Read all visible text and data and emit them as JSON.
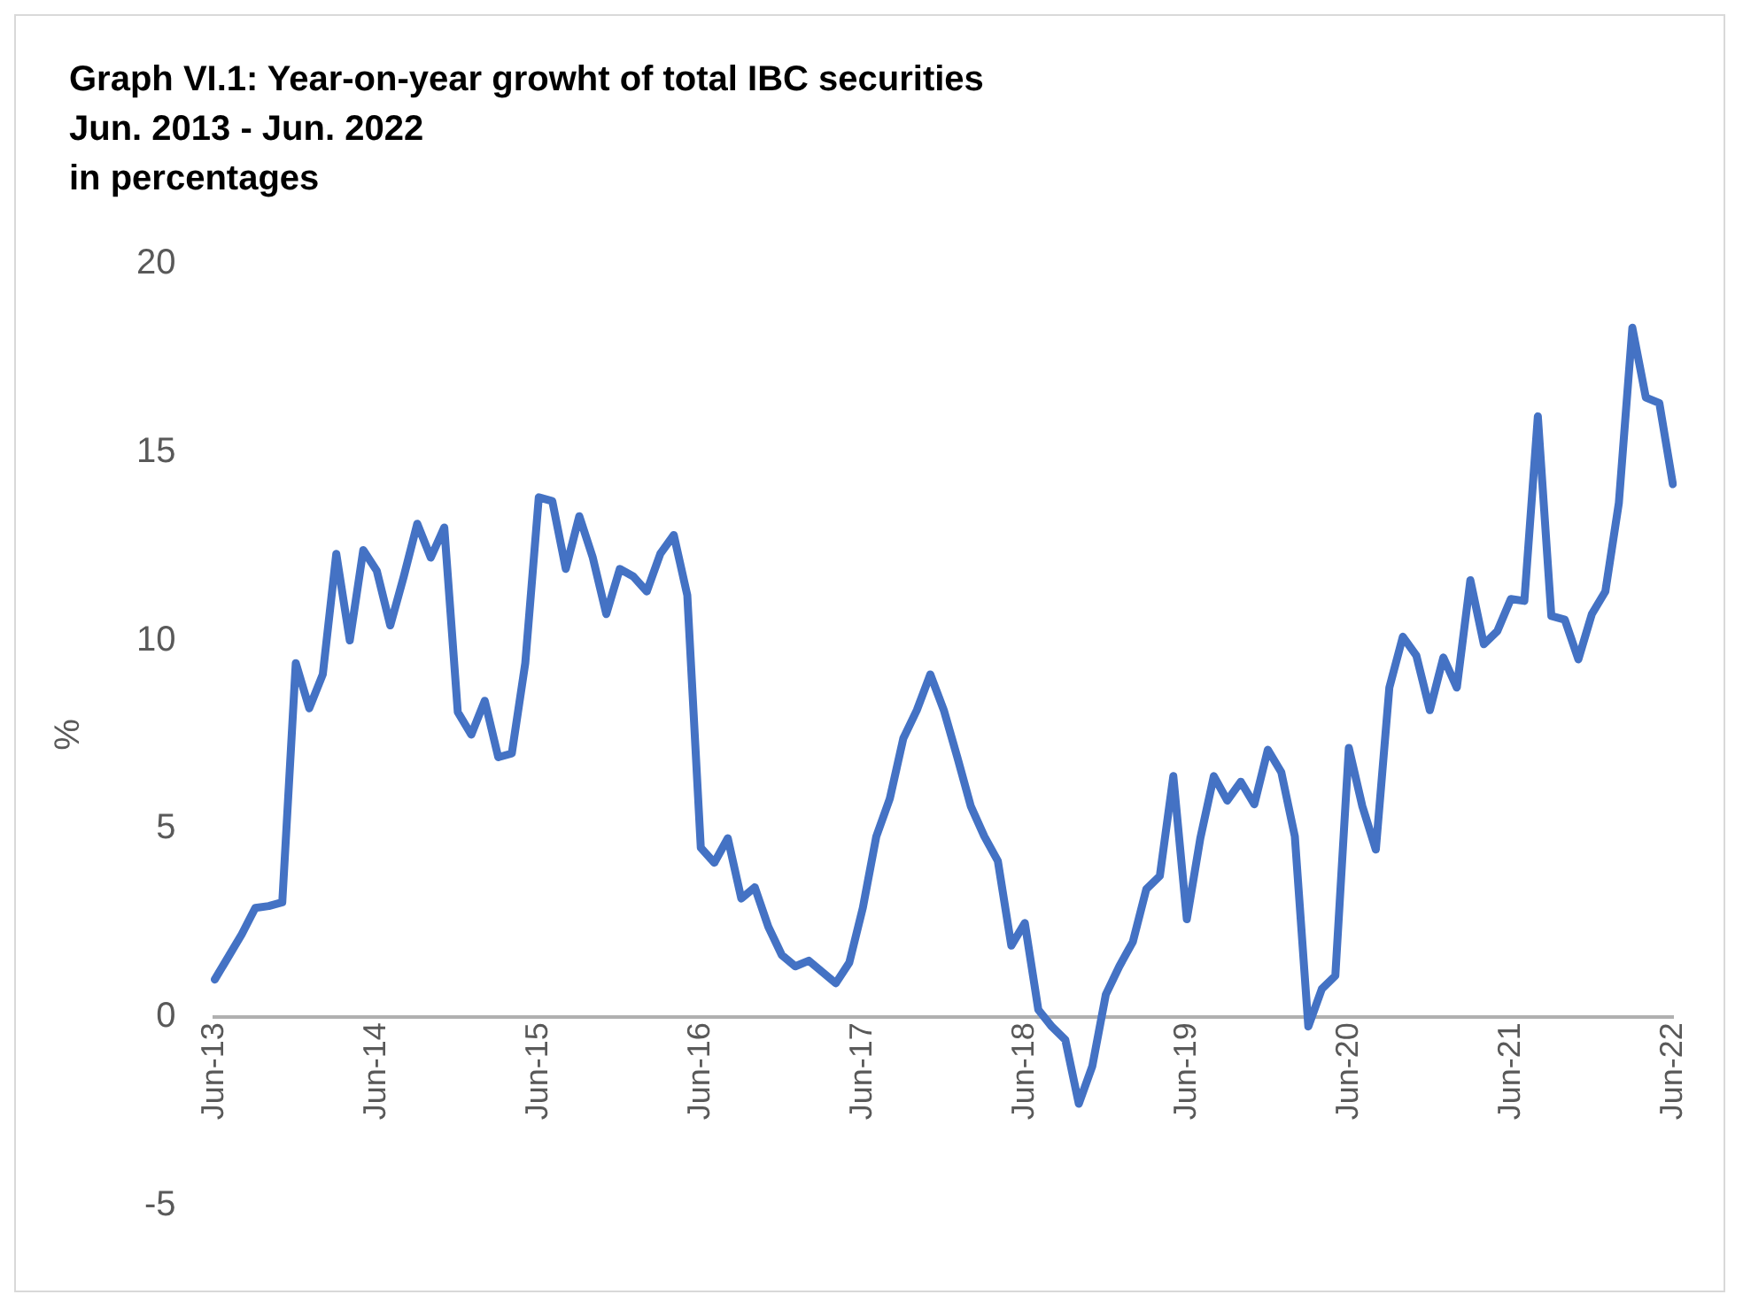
{
  "chart_data": {
    "type": "line",
    "title": "Graph VI.1: Year-on-year growht of total IBC securities",
    "subtitle": "Jun. 2013 - Jun. 2022",
    "annotations": [
      "in percentages"
    ],
    "ylabel": "%",
    "categories": [
      "Jun-13",
      null,
      null,
      null,
      null,
      null,
      null,
      null,
      null,
      null,
      null,
      null,
      "Jun-14",
      null,
      null,
      null,
      null,
      null,
      null,
      null,
      null,
      null,
      null,
      null,
      "Jun-15",
      null,
      null,
      null,
      null,
      null,
      null,
      null,
      null,
      null,
      null,
      null,
      "Jun-16",
      null,
      null,
      null,
      null,
      null,
      null,
      null,
      null,
      null,
      null,
      null,
      "Jun-17",
      null,
      null,
      null,
      null,
      null,
      null,
      null,
      null,
      null,
      null,
      null,
      "Jun-18",
      null,
      null,
      null,
      null,
      null,
      null,
      null,
      null,
      null,
      null,
      null,
      "Jun-19",
      null,
      null,
      null,
      null,
      null,
      null,
      null,
      null,
      null,
      null,
      null,
      "Jun-20",
      null,
      null,
      null,
      null,
      null,
      null,
      null,
      null,
      null,
      null,
      null,
      "Jun-21",
      null,
      null,
      null,
      null,
      null,
      null,
      null,
      null,
      null,
      null,
      null,
      "Jun-22"
    ],
    "series": [
      {
        "color": "#4472c4",
        "values": [
          1.0,
          1.6,
          2.2,
          2.9,
          2.95,
          3.05,
          9.4,
          8.2,
          9.1,
          12.3,
          10.0,
          12.4,
          11.85,
          10.4,
          11.7,
          13.1,
          12.2,
          13.0,
          8.1,
          7.5,
          8.4,
          6.9,
          7.0,
          9.4,
          13.8,
          13.7,
          11.9,
          13.3,
          12.2,
          10.7,
          11.9,
          11.7,
          11.3,
          12.3,
          12.8,
          11.2,
          4.5,
          4.1,
          4.75,
          3.15,
          3.45,
          2.4,
          1.65,
          1.35,
          1.5,
          1.2,
          0.9,
          1.45,
          2.9,
          4.8,
          5.8,
          7.4,
          8.15,
          9.1,
          8.15,
          6.9,
          5.6,
          4.8,
          4.15,
          1.9,
          2.5,
          0.2,
          -0.25,
          -0.6,
          -2.3,
          -1.3,
          0.6,
          1.35,
          2.0,
          3.4,
          3.75,
          6.4,
          2.6,
          4.75,
          6.4,
          5.75,
          6.25,
          5.65,
          7.1,
          6.5,
          4.8,
          -0.25,
          0.75,
          1.1,
          7.15,
          5.6,
          4.45,
          8.75,
          10.1,
          9.6,
          8.15,
          9.55,
          8.75,
          11.6,
          9.9,
          10.25,
          11.1,
          11.05,
          15.95,
          10.65,
          10.55,
          9.5,
          10.7,
          11.3,
          13.65,
          18.3,
          16.45,
          16.3,
          14.15
        ]
      }
    ],
    "ylim": [
      -5,
      20
    ],
    "yticks": [
      -5,
      0,
      5,
      10,
      15,
      20
    ],
    "grid": false,
    "legend": false,
    "marker": "none",
    "line_style": "solid"
  }
}
